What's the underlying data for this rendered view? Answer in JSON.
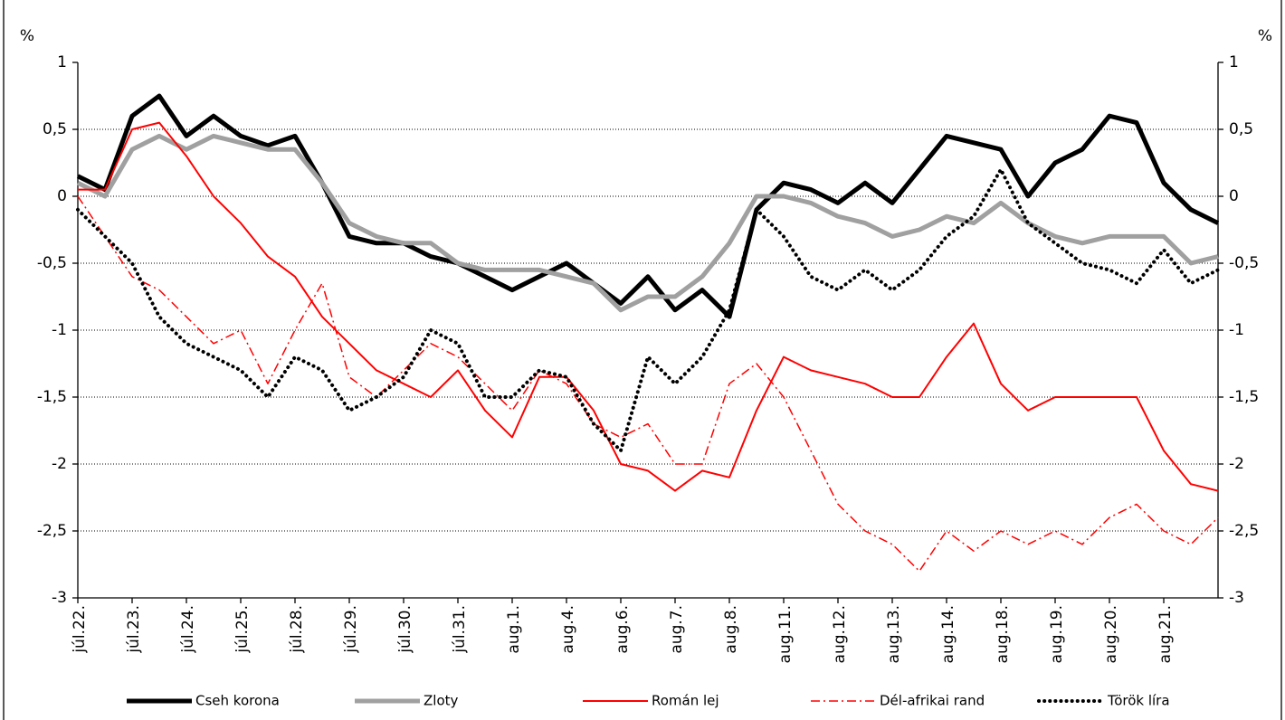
{
  "chart_data": {
    "type": "line",
    "y_unit": "%",
    "y2_unit": "%",
    "x": [
      0,
      0.5,
      1,
      1.5,
      2,
      2.5,
      3,
      3.5,
      4,
      4.5,
      5,
      5.5,
      6,
      6.5,
      7,
      7.5,
      8,
      8.5,
      9,
      9.5,
      10,
      10.5,
      11,
      11.5,
      12,
      12.5,
      13,
      13.5,
      14,
      14.5,
      15,
      15.5,
      16,
      16.5,
      17,
      17.5,
      18,
      18.5,
      19,
      19.5,
      20,
      20.5,
      21
    ],
    "xlim": [
      0,
      21
    ],
    "xticks": [
      {
        "value": 0,
        "label": "júl.22."
      },
      {
        "value": 1,
        "label": "júl.23."
      },
      {
        "value": 2,
        "label": "júl.24."
      },
      {
        "value": 3,
        "label": "júl.25."
      },
      {
        "value": 4,
        "label": "júl.28."
      },
      {
        "value": 5,
        "label": "júl.29."
      },
      {
        "value": 6,
        "label": "júl.30."
      },
      {
        "value": 7,
        "label": "júl.31."
      },
      {
        "value": 8,
        "label": "aug.1."
      },
      {
        "value": 9,
        "label": "aug.4."
      },
      {
        "value": 10,
        "label": "aug.6."
      },
      {
        "value": 11,
        "label": "aug.7."
      },
      {
        "value": 12,
        "label": "aug.8."
      },
      {
        "value": 13,
        "label": "aug.11."
      },
      {
        "value": 14,
        "label": "aug.12."
      },
      {
        "value": 15,
        "label": "aug.13."
      },
      {
        "value": 16,
        "label": "aug.14."
      },
      {
        "value": 17,
        "label": "aug.18."
      },
      {
        "value": 18,
        "label": "aug.19."
      },
      {
        "value": 19,
        "label": "aug.20."
      },
      {
        "value": 20,
        "label": "aug.21."
      }
    ],
    "ylim": [
      -3,
      1
    ],
    "yticks": [
      1,
      {
        "value": 0.5,
        "label": "0,5"
      },
      0,
      {
        "value": -0.5,
        "label": "-0,5"
      },
      -1,
      {
        "value": -1.5,
        "label": "-1,5"
      },
      -2,
      {
        "value": -2.5,
        "label": "-2,5"
      },
      -3
    ],
    "y2lim": [
      -3,
      1
    ],
    "y2ticks": [
      1,
      {
        "value": 0.5,
        "label": "0,5"
      },
      0,
      {
        "value": -0.5,
        "label": "-0,5"
      },
      -1,
      {
        "value": -1.5,
        "label": "-1,5"
      },
      -2,
      {
        "value": -2.5,
        "label": "-2,5"
      },
      -3
    ],
    "grid": true,
    "legend": "bottom",
    "series": [
      {
        "name": "Cseh korona",
        "color": "#000000",
        "line_style": "solid",
        "line_width": 5,
        "values": [
          0.15,
          0.05,
          0.6,
          0.75,
          0.45,
          0.6,
          0.45,
          0.38,
          0.45,
          0.1,
          -0.3,
          -0.35,
          -0.35,
          -0.45,
          -0.5,
          -0.6,
          -0.7,
          -0.6,
          -0.5,
          -0.65,
          -0.8,
          -0.6,
          -0.85,
          -0.7,
          -0.9,
          -0.1,
          0.1,
          0.05,
          -0.05,
          0.1,
          -0.05,
          0.2,
          0.45,
          0.4,
          0.35,
          0.0,
          0.25,
          0.35,
          0.6,
          0.55,
          0.1,
          -0.1,
          -0.2
        ]
      },
      {
        "name": "Zloty",
        "color": "#a0a0a0",
        "line_style": "solid",
        "line_width": 5,
        "values": [
          0.1,
          0.0,
          0.35,
          0.45,
          0.35,
          0.45,
          0.4,
          0.35,
          0.35,
          0.1,
          -0.2,
          -0.3,
          -0.35,
          -0.35,
          -0.5,
          -0.55,
          -0.55,
          -0.55,
          -0.6,
          -0.65,
          -0.85,
          -0.75,
          -0.75,
          -0.6,
          -0.35,
          0.0,
          0.0,
          -0.05,
          -0.15,
          -0.2,
          -0.3,
          -0.25,
          -0.15,
          -0.2,
          -0.05,
          -0.2,
          -0.3,
          -0.35,
          -0.3,
          -0.3,
          -0.3,
          -0.5,
          -0.45
        ]
      },
      {
        "name": "Román lej",
        "color": "#ff0000",
        "line_style": "solid",
        "line_width": 2,
        "values": [
          0.05,
          0.05,
          0.5,
          0.55,
          0.3,
          0.0,
          -0.2,
          -0.45,
          -0.6,
          -0.9,
          -1.1,
          -1.3,
          -1.4,
          -1.5,
          -1.3,
          -1.6,
          -1.8,
          -1.35,
          -1.35,
          -1.6,
          -2.0,
          -2.05,
          -2.2,
          -2.05,
          -2.1,
          -1.6,
          -1.2,
          -1.3,
          -1.35,
          -1.4,
          -1.5,
          -1.5,
          -1.2,
          -0.95,
          -1.4,
          -1.6,
          -1.5,
          -1.5,
          -1.5,
          -1.5,
          -1.9,
          -2.15,
          -2.2
        ]
      },
      {
        "name": "Dél-afrikai rand",
        "color": "#ff0000",
        "line_style": "dashdot",
        "line_width": 1.5,
        "values": [
          0.0,
          -0.3,
          -0.6,
          -0.7,
          -0.9,
          -1.1,
          -1.0,
          -1.4,
          -1.0,
          -0.65,
          -1.35,
          -1.5,
          -1.3,
          -1.1,
          -1.2,
          -1.4,
          -1.6,
          -1.3,
          -1.4,
          -1.7,
          -1.8,
          -1.7,
          -2.0,
          -2.0,
          -1.4,
          -1.25,
          -1.5,
          -1.9,
          -2.3,
          -2.5,
          -2.6,
          -2.8,
          -2.5,
          -2.65,
          -2.5,
          -2.6,
          -2.5,
          -2.6,
          -2.4,
          -2.3,
          -2.5,
          -2.6,
          -2.4
        ]
      },
      {
        "name": "Török líra",
        "color": "#000000",
        "line_style": "dotted",
        "line_width": 4,
        "values": [
          -0.1,
          -0.3,
          -0.5,
          -0.9,
          -1.1,
          -1.2,
          -1.3,
          -1.5,
          -1.2,
          -1.3,
          -1.6,
          -1.5,
          -1.35,
          -1.0,
          -1.1,
          -1.5,
          -1.5,
          -1.3,
          -1.35,
          -1.7,
          -1.9,
          -1.2,
          -1.4,
          -1.2,
          -0.85,
          -0.1,
          -0.3,
          -0.6,
          -0.7,
          -0.55,
          -0.7,
          -0.55,
          -0.3,
          -0.15,
          0.2,
          -0.2,
          -0.35,
          -0.5,
          -0.55,
          -0.65,
          -0.4,
          -0.65,
          -0.55
        ]
      }
    ]
  }
}
